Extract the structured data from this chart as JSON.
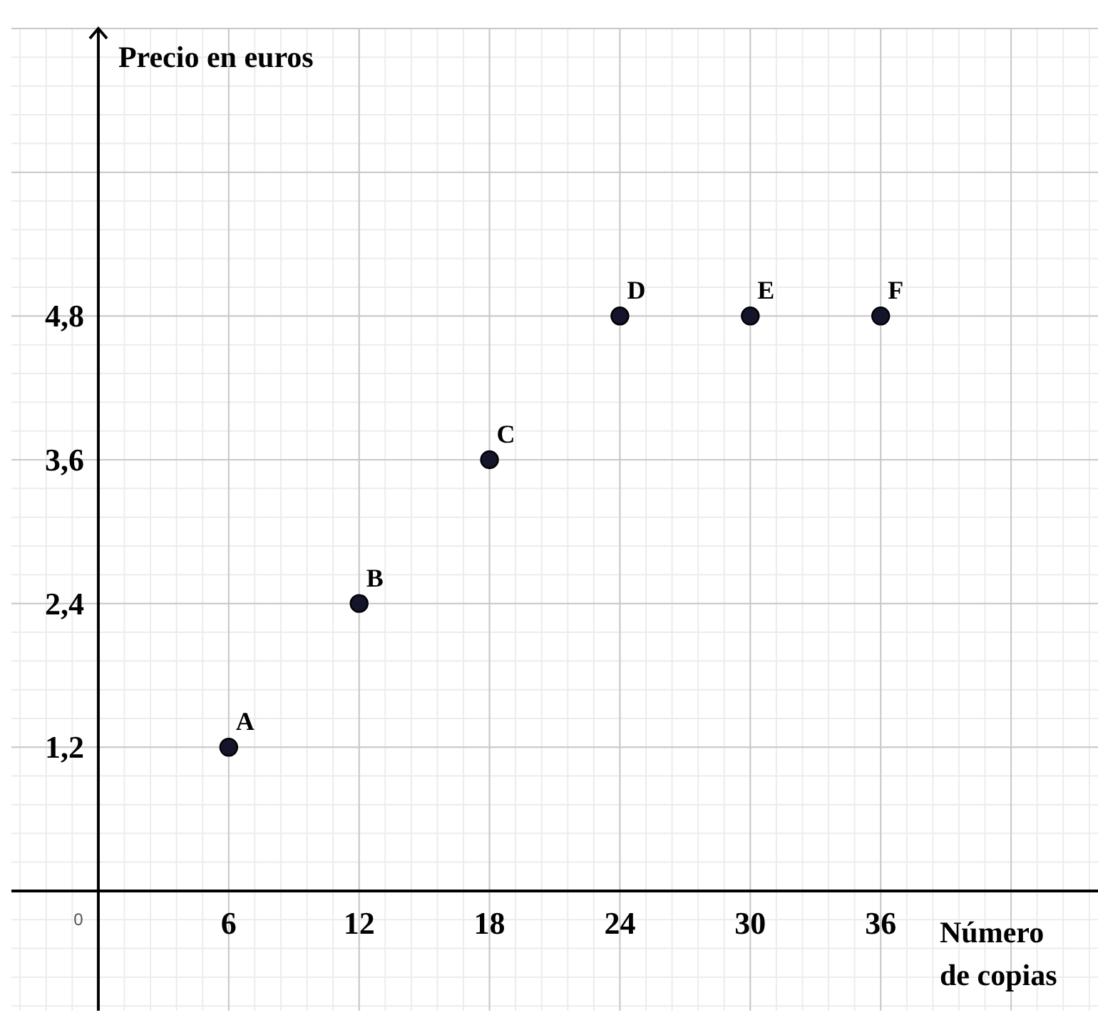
{
  "chart_data": {
    "type": "scatter",
    "xlabel": "Número de copias",
    "ylabel": "Precio en euros",
    "x": [
      6,
      12,
      18,
      24,
      30,
      36
    ],
    "series": [
      {
        "color": "#14142a",
        "values": [
          1.2,
          2.4,
          3.6,
          4.8,
          4.8,
          4.8
        ]
      }
    ],
    "xlim": [
      -4,
      46
    ],
    "ylim": [
      -1.0,
      7.2
    ],
    "xticks": [
      6,
      12,
      18,
      24,
      30,
      36,
      {
        "value": 42,
        "label": null
      }
    ],
    "yticks": [
      {
        "value": 1.2,
        "label": "1,2"
      },
      {
        "value": 2.4,
        "label": "2,4"
      },
      {
        "value": 3.6,
        "label": "3,6"
      },
      {
        "value": 4.8,
        "label": "4,8"
      },
      {
        "value": 6,
        "label": null
      },
      {
        "value": 7.2,
        "label": null
      }
    ],
    "grid": true,
    "marker": "circle",
    "annotations": [
      "0",
      {
        "text": "A",
        "x": 6,
        "y": 1.2
      },
      {
        "text": "B",
        "x": 12,
        "y": 2.4
      },
      {
        "text": "C",
        "x": 18,
        "y": 3.6
      },
      {
        "text": "D",
        "x": 24,
        "y": 4.8
      },
      {
        "text": "E",
        "x": 30,
        "y": 4.8
      },
      {
        "text": "F",
        "x": 36,
        "y": 4.8
      }
    ]
  }
}
